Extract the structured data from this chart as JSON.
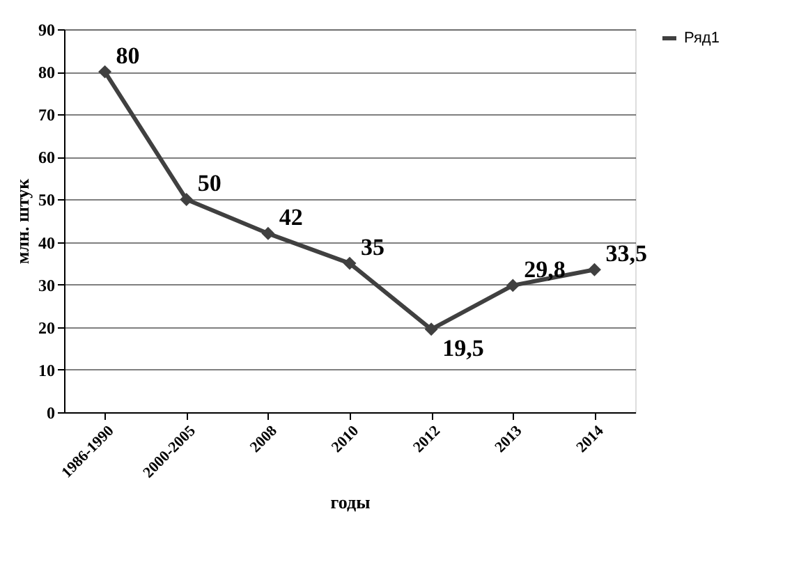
{
  "chart_data": {
    "type": "line",
    "xlabel": "годы",
    "ylabel": "млн. штук",
    "categories": [
      "1986-1990",
      "2000-2005",
      "2008",
      "2010",
      "2012",
      "2013",
      "2014"
    ],
    "series": [
      {
        "name": "Ряд1",
        "color": "#404040",
        "values": [
          80,
          50,
          42,
          35,
          19.5,
          29.8,
          33.5
        ],
        "value_labels": [
          "80",
          "50",
          "42",
          "35",
          "19,5",
          "29,8",
          "33,5"
        ]
      }
    ],
    "ylim": [
      0,
      90
    ],
    "yticks": [
      0,
      10,
      20,
      30,
      40,
      50,
      60,
      70,
      80,
      90
    ],
    "grid": "y",
    "legend": "right",
    "marker": "diamond",
    "line_style": "solid"
  }
}
